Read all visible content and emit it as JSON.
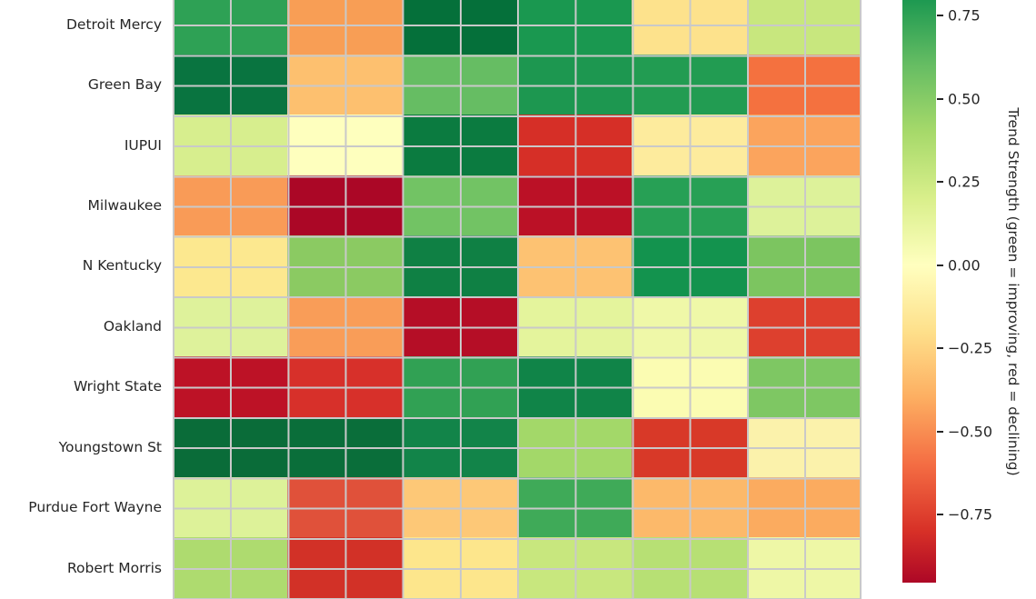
{
  "figure": {
    "background_color": "#ffffff",
    "grid_line_color": "#c9c9c9",
    "text_color": "#262626"
  },
  "chart_data": {
    "type": "heatmap",
    "rows": [
      "Detroit Mercy",
      "Green Bay",
      "IUPUI",
      "Milwaukee",
      "N Kentucky",
      "Oakland",
      "Wright State",
      "Youngstown St",
      "Purdue Fort Wayne",
      "Robert Morris"
    ],
    "n_columns": 6,
    "column_labels": null,
    "values": [
      [
        0.7,
        -0.45,
        0.92,
        0.8,
        -0.16,
        0.24
      ],
      [
        0.88,
        -0.32,
        0.6,
        0.8,
        0.78,
        -0.57
      ],
      [
        0.21,
        0.0,
        0.86,
        -0.81,
        -0.1,
        -0.42
      ],
      [
        -0.46,
        -0.96,
        0.57,
        -0.9,
        0.74,
        0.2
      ],
      [
        -0.13,
        0.5,
        0.84,
        -0.31,
        0.8,
        0.56
      ],
      [
        0.18,
        -0.45,
        -0.89,
        0.13,
        0.07,
        -0.77
      ],
      [
        -0.87,
        -0.8,
        0.71,
        0.83,
        0.01,
        0.55
      ],
      [
        0.93,
        0.92,
        0.82,
        0.41,
        -0.77,
        -0.05
      ],
      [
        0.19,
        -0.7,
        -0.28,
        0.66,
        -0.35,
        -0.4
      ],
      [
        0.44,
        -0.82,
        -0.15,
        0.25,
        0.36,
        0.09
      ]
    ],
    "cell_colors": [
      [
        "#2ea155",
        "#f89e55",
        "#05703a",
        "#1a9850",
        "#fde28c",
        "#c8e77e"
      ],
      [
        "#097440",
        "#fdc06f",
        "#66bd63",
        "#1d9750",
        "#229c52",
        "#f4713f"
      ],
      [
        "#d7ee8e",
        "#feffbe",
        "#0b7b40",
        "#d62f27",
        "#fdeb9d",
        "#fba45d"
      ],
      [
        "#f99b57",
        "#ab0726",
        "#72c364",
        "#bb1126",
        "#27a055",
        "#ddf29a"
      ],
      [
        "#fce88f",
        "#8bca62",
        "#0f8044",
        "#fdc272",
        "#13934e",
        "#7cc560"
      ],
      [
        "#def29b",
        "#f99d58",
        "#b50e26",
        "#e4f49c",
        "#eff8a8",
        "#dd402e"
      ],
      [
        "#bd1226",
        "#d7302a",
        "#31a154",
        "#108448",
        "#fbfcb2",
        "#7ec763"
      ],
      [
        "#0a6c39",
        "#0a6e3a",
        "#128449",
        "#a3d869",
        "#d83928",
        "#fbf2ab"
      ],
      [
        "#ddf299",
        "#e0513a",
        "#fdc877",
        "#3faa58",
        "#fcb96a",
        "#fbab5f"
      ],
      [
        "#aedb6f",
        "#d23127",
        "#fde68c",
        "#c8e77e",
        "#b7e074",
        "#eef7a6"
      ]
    ],
    "grid": true,
    "legend_position": "right-colorbar",
    "colorbar": {
      "label": "Trend Strength (green = improving, red = declining)",
      "colormap": "RdYlGn",
      "tick_values": [
        0.75,
        0.5,
        0.25,
        0.0,
        -0.25,
        -0.5,
        -0.75
      ],
      "tick_labels": [
        "0.75",
        "0.50",
        "0.25",
        "0.00",
        "−0.25",
        "−0.50",
        "−0.75"
      ],
      "visible_value_range": [
        0.8,
        -0.96
      ]
    }
  }
}
